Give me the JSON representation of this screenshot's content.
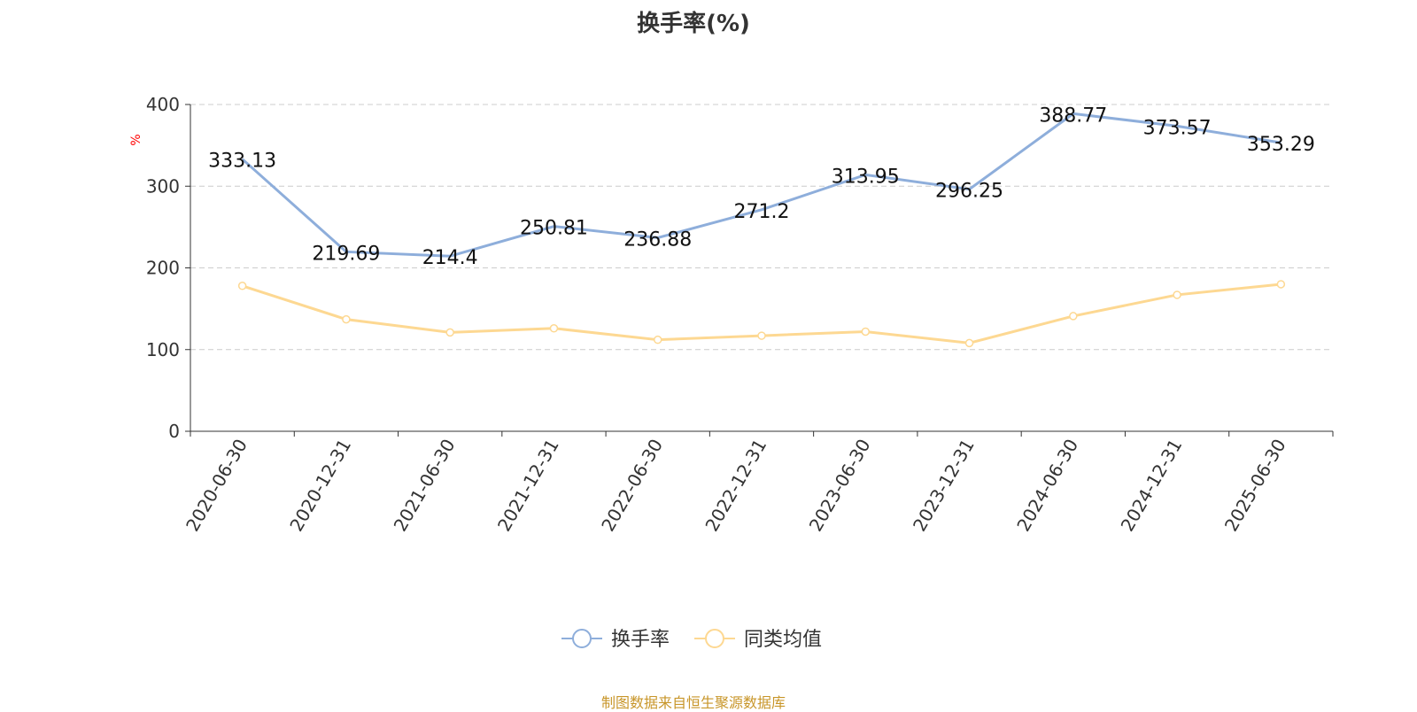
{
  "chart_data": {
    "type": "line",
    "title": "换手率(%)",
    "ylabel": "%",
    "ylim": [
      0,
      400
    ],
    "yticks": [
      0,
      100,
      200,
      300,
      400
    ],
    "grid": "horizontal dashed",
    "legend_position": "bottom",
    "categories": [
      "2020-06-30",
      "2020-12-31",
      "2021-06-30",
      "2021-12-31",
      "2022-06-30",
      "2022-12-31",
      "2023-06-30",
      "2023-12-31",
      "2024-06-30",
      "2024-12-31",
      "2025-06-30"
    ],
    "series": [
      {
        "name": "换手率",
        "color": "#8eaedb",
        "labels": true,
        "values": [
          333.13,
          219.69,
          214.4,
          250.81,
          236.88,
          271.2,
          313.95,
          296.25,
          388.77,
          373.57,
          353.29
        ]
      },
      {
        "name": "同类均值",
        "color": "#fdd892",
        "labels": false,
        "values": [
          178,
          137,
          121,
          126,
          112,
          117,
          122,
          108,
          141,
          167,
          180
        ]
      }
    ]
  },
  "footer": "制图数据来自恒生聚源数据库"
}
